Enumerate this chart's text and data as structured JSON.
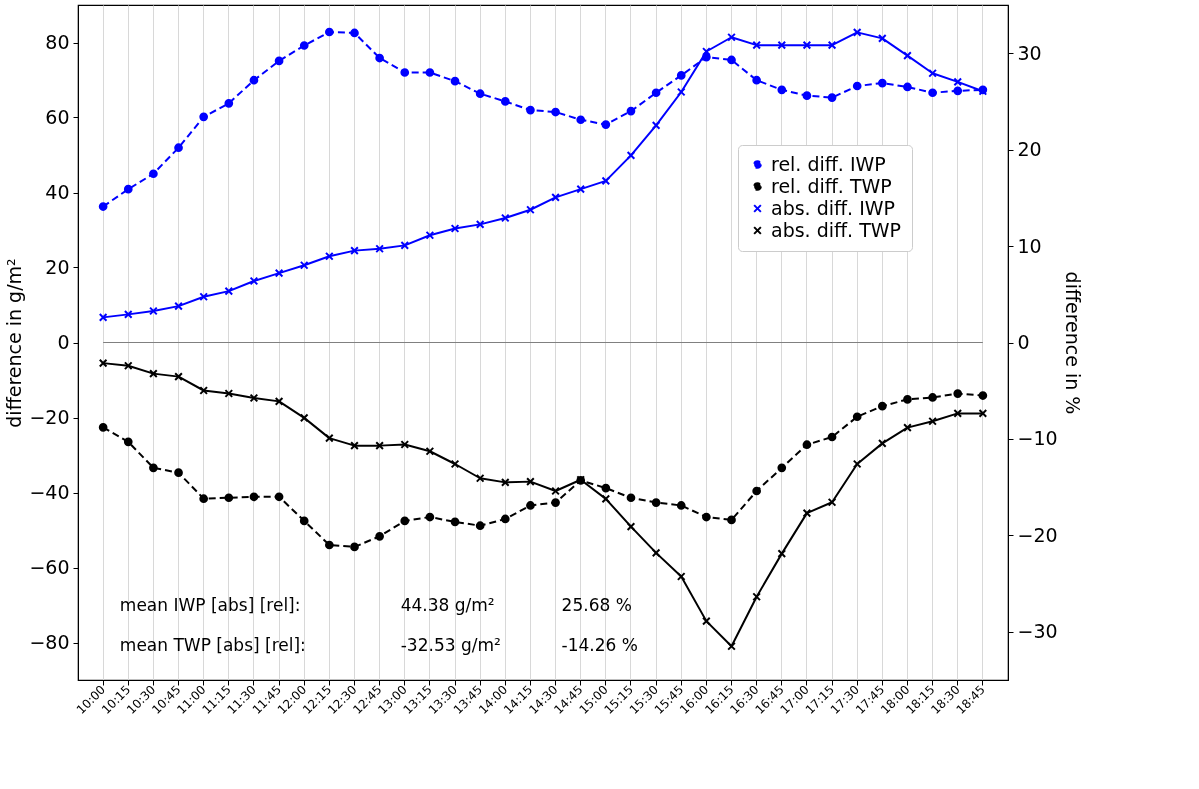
{
  "chart_data": {
    "type": "line",
    "categories": [
      "10:00",
      "10:15",
      "10:30",
      "10:45",
      "11:00",
      "11:15",
      "11:30",
      "11:45",
      "12:00",
      "12:15",
      "12:30",
      "12:45",
      "13:00",
      "13:15",
      "13:30",
      "13:45",
      "14:00",
      "14:15",
      "14:30",
      "14:45",
      "15:00",
      "15:15",
      "15:30",
      "15:45",
      "16:00",
      "16:15",
      "16:30",
      "16:45",
      "17:00",
      "17:15",
      "17:30",
      "17:45",
      "18:00",
      "18:15",
      "18:30",
      "18:45"
    ],
    "ylabel": "difference in g/m²",
    "y2label": "difference in %",
    "ylim": [
      -90,
      90
    ],
    "yticks": [
      -80,
      -60,
      -40,
      -20,
      0,
      20,
      40,
      60,
      80
    ],
    "y2lim": [
      -35,
      35
    ],
    "y2ticks": [
      -30,
      -20,
      -10,
      0,
      10,
      20,
      30
    ],
    "grid": "x",
    "legend": "right",
    "series": [
      {
        "name": "rel. diff. IWP",
        "color": "#0000ff",
        "axis": "y2",
        "marker": "circle",
        "line_style": "dashed",
        "values": [
          14.1,
          15.9,
          17.5,
          20.2,
          23.4,
          24.8,
          27.2,
          29.2,
          30.8,
          32.2,
          32.1,
          29.5,
          28.0,
          28.0,
          27.1,
          25.8,
          25.0,
          24.1,
          23.9,
          23.1,
          22.6,
          24.0,
          25.9,
          27.7,
          29.6,
          29.3,
          27.2,
          26.2,
          25.6,
          25.4,
          26.6,
          26.9,
          26.5,
          25.9,
          26.1,
          26.2
        ]
      },
      {
        "name": "rel. diff. TWP",
        "color": "#000000",
        "axis": "y2",
        "marker": "circle",
        "line_style": "dashed",
        "values": [
          -8.8,
          -10.3,
          -13.0,
          -13.5,
          -16.2,
          -16.1,
          -16.0,
          -16.0,
          -18.5,
          -21.0,
          -21.2,
          -20.1,
          -18.5,
          -18.1,
          -18.6,
          -19.0,
          -18.3,
          -16.9,
          -16.6,
          -14.3,
          -15.1,
          -16.1,
          -16.6,
          -16.9,
          -18.1,
          -18.4,
          -15.4,
          -13.0,
          -10.6,
          -9.8,
          -7.7,
          -6.6,
          -5.9,
          -5.7,
          -5.3,
          -5.5
        ]
      },
      {
        "name": "abs. diff. IWP",
        "color": "#0000ff",
        "axis": "y",
        "marker": "cross",
        "line_style": "solid",
        "values": [
          6.7,
          7.5,
          8.4,
          9.7,
          12.2,
          13.7,
          16.4,
          18.5,
          20.6,
          23.0,
          24.5,
          25.0,
          25.9,
          28.6,
          30.4,
          31.5,
          33.2,
          35.4,
          38.7,
          40.9,
          43.1,
          49.9,
          57.9,
          66.8,
          77.6,
          81.4,
          79.3,
          79.3,
          79.3,
          79.3,
          82.7,
          81.1,
          76.5,
          71.8,
          69.5,
          67.0
        ]
      },
      {
        "name": "abs. diff. TWP",
        "color": "#000000",
        "axis": "y",
        "marker": "cross",
        "line_style": "solid",
        "values": [
          -5.5,
          -6.2,
          -8.3,
          -9.1,
          -12.8,
          -13.6,
          -14.8,
          -15.7,
          -20.1,
          -25.5,
          -27.5,
          -27.5,
          -27.2,
          -29.0,
          -32.4,
          -36.2,
          -37.3,
          -37.1,
          -39.6,
          -36.6,
          -41.7,
          -49.1,
          -56.1,
          -62.4,
          -74.3,
          -81.0,
          -67.8,
          -56.3,
          -45.5,
          -42.6,
          -32.4,
          -26.9,
          -22.7,
          -21.0,
          -18.9,
          -18.9
        ]
      }
    ],
    "ref_lines": [
      {
        "axis": "y",
        "value": 0,
        "color": "#808080"
      }
    ],
    "annotations": [
      "mean IWP [abs] [rel]:",
      "44.38 g/m²",
      "25.68 %",
      "mean TWP [abs] [rel]:",
      "-32.53 g/m²",
      "-14.26 %"
    ]
  }
}
